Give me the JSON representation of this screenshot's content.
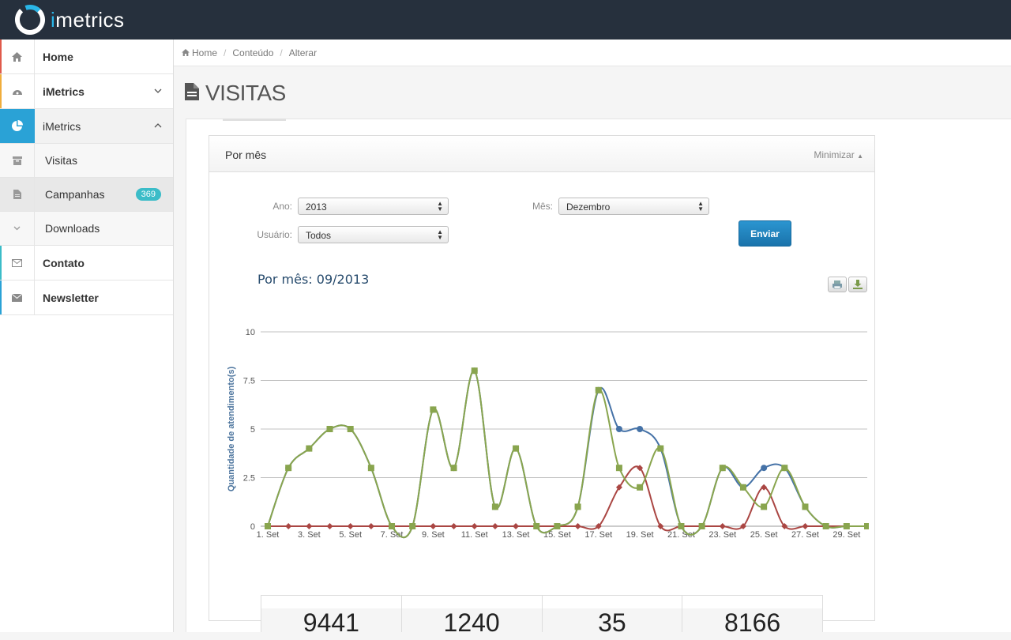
{
  "app": {
    "logo_text": "metrics",
    "logo_i": "i"
  },
  "sidebar": {
    "items": [
      {
        "label": "Home",
        "icon": "home-icon",
        "accent": "#e05a4b"
      },
      {
        "label": "iMetrics",
        "icon": "dashboard-icon",
        "accent": "#f0ad3c",
        "chevron": "﹀"
      },
      {
        "label": "iMetrics",
        "icon": "pie-chart-icon",
        "active": true,
        "chevron": "︿"
      }
    ],
    "sub_items": [
      {
        "label": "Visitas",
        "icon": "archive-icon"
      },
      {
        "label": "Campanhas",
        "icon": "file-icon",
        "badge": "369"
      },
      {
        "label": "Downloads",
        "icon": "chevron-down-icon"
      }
    ],
    "bottom_items": [
      {
        "label": "Contato",
        "icon": "envelope-outline-icon",
        "accent": "#3bbcc8"
      },
      {
        "label": "Newsletter",
        "icon": "envelope-icon",
        "accent": "#2aa2d6"
      }
    ]
  },
  "breadcrumb": {
    "home": "Home",
    "items": [
      "Conteúdo",
      "Alterar"
    ]
  },
  "page": {
    "title": "VISITAS"
  },
  "panel": {
    "title": "Por mês",
    "minimize": "Minimizar"
  },
  "form": {
    "ano_label": "Ano:",
    "ano_value": "2013",
    "mes_label": "Mês:",
    "mes_value": "Dezembro",
    "usuario_label": "Usuário:",
    "usuario_value": "Todos",
    "submit_label": "Enviar"
  },
  "chart_data": {
    "type": "line",
    "title": "Por mês: 09/2013",
    "ylabel": "Quantidade de atendimento(s)",
    "ylim": [
      0,
      10
    ],
    "yticks": [
      "0",
      "2.5",
      "5",
      "7.5",
      "10"
    ],
    "xtick_labels": [
      "1. Set",
      "3. Set",
      "5. Set",
      "7. Set",
      "9. Set",
      "11. Set",
      "13. Set",
      "15. Set",
      "17. Set",
      "19. Set",
      "21. Set",
      "23. Set",
      "25. Set",
      "27. Set",
      "29. Set"
    ],
    "x": [
      1,
      2,
      3,
      4,
      5,
      6,
      7,
      8,
      9,
      10,
      11,
      12,
      13,
      14,
      15,
      16,
      17,
      18,
      19,
      20,
      21,
      22,
      23,
      24,
      25,
      26,
      27,
      28,
      29,
      30
    ],
    "series": [
      {
        "color": "#4572a7",
        "marker": "circle",
        "values": [
          0,
          3,
          4,
          5,
          5,
          3,
          0,
          0,
          6,
          3,
          8,
          1,
          4,
          0,
          0,
          1,
          7,
          5,
          5,
          4,
          0,
          0,
          3,
          2,
          3,
          3,
          1,
          0,
          0,
          0
        ]
      },
      {
        "color": "#aa4643",
        "marker": "diamond",
        "values": [
          0,
          0,
          0,
          0,
          0,
          0,
          0,
          0,
          0,
          0,
          0,
          0,
          0,
          0,
          0,
          0,
          0,
          2,
          3,
          0,
          0,
          0,
          0,
          0,
          2,
          0,
          0,
          0,
          0,
          0
        ]
      },
      {
        "color": "#89a54e",
        "marker": "square",
        "values": [
          0,
          3,
          4,
          5,
          5,
          3,
          0,
          0,
          6,
          3,
          8,
          1,
          4,
          0,
          0,
          1,
          7,
          3,
          2,
          4,
          0,
          0,
          3,
          2,
          1,
          3,
          1,
          0,
          0,
          0
        ]
      }
    ]
  },
  "stats": [
    "9441",
    "1240",
    "35",
    "8166"
  ]
}
